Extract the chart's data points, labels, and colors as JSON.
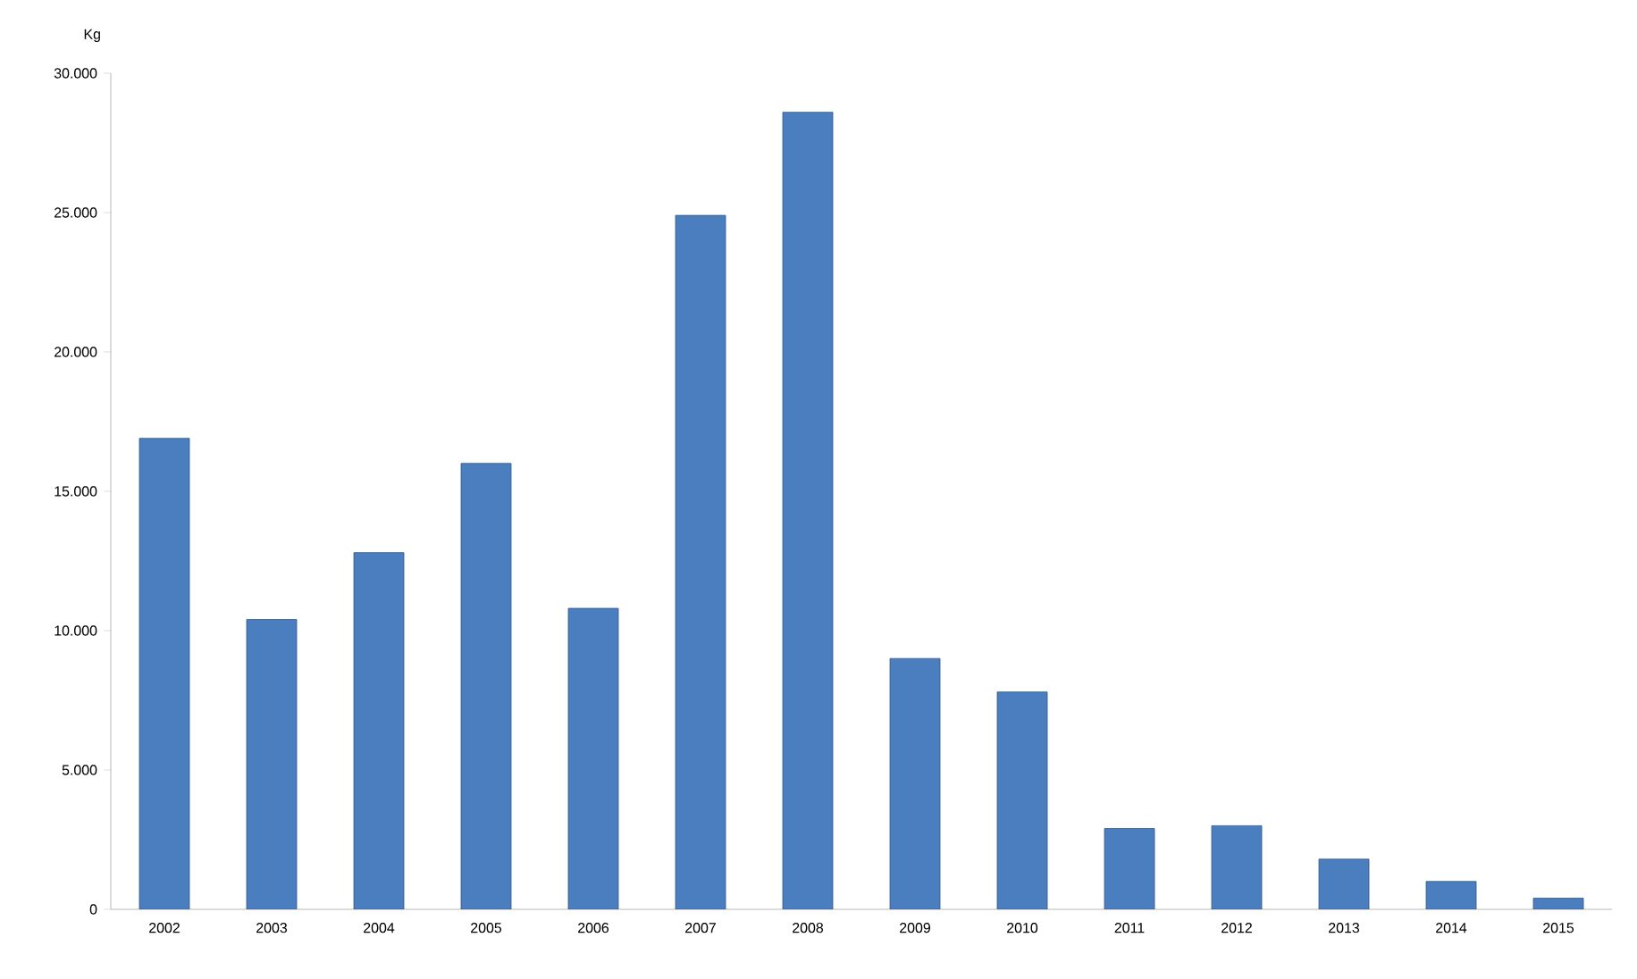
{
  "chart_data": {
    "type": "bar",
    "ylabel": "Kg",
    "categories": [
      "2002",
      "2003",
      "2004",
      "2005",
      "2006",
      "2007",
      "2008",
      "2009",
      "2010",
      "2011",
      "2012",
      "2013",
      "2014",
      "2015"
    ],
    "values": [
      16900,
      10400,
      12800,
      16000,
      10800,
      24900,
      28600,
      9000,
      7800,
      2900,
      3000,
      1800,
      1000,
      400
    ],
    "color": "#4a7ebf",
    "ylim": [
      0,
      30000
    ],
    "yticks": [
      {
        "value": 0,
        "label": "0"
      },
      {
        "value": 5000,
        "label": "5.000"
      },
      {
        "value": 10000,
        "label": "10.000"
      },
      {
        "value": 15000,
        "label": "15.000"
      },
      {
        "value": 20000,
        "label": "20.000"
      },
      {
        "value": 25000,
        "label": "25.000"
      },
      {
        "value": 30000,
        "label": "30.000"
      }
    ]
  }
}
